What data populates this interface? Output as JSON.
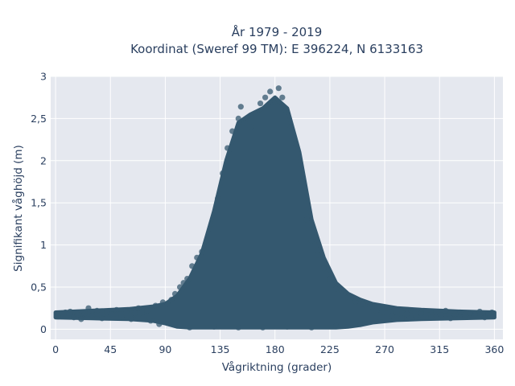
{
  "chart_data": {
    "type": "scatter",
    "title_line1": "År 1979 - 2019",
    "title_line2": "Koordinat (Sweref 99 TM): E 396224, N 6133163",
    "xlabel": "Vågriktning (grader)",
    "ylabel": "Signifikant våghöjd (m)",
    "xlim": [
      -4,
      367
    ],
    "ylim": [
      -0.12,
      3.0
    ],
    "xticks": [
      0,
      45,
      90,
      135,
      180,
      225,
      270,
      315,
      360
    ],
    "xtick_labels": [
      "0",
      "45",
      "90",
      "135",
      "180",
      "225",
      "270",
      "315",
      "360"
    ],
    "yticks": [
      0,
      0.5,
      1,
      1.5,
      2,
      2.5,
      3
    ],
    "ytick_labels": [
      "0",
      "0,5",
      "1",
      "1,5",
      "2",
      "2,5",
      "3"
    ],
    "grid": true,
    "marker_color": "#34586f",
    "background_color": "#e5e8ef",
    "envelope_upper": {
      "x": [
        0,
        30,
        60,
        80,
        90,
        100,
        110,
        120,
        130,
        140,
        150,
        160,
        170,
        180,
        190,
        200,
        210,
        220,
        230,
        240,
        250,
        260,
        280,
        300,
        330,
        360
      ],
      "y": [
        0.2,
        0.22,
        0.24,
        0.27,
        0.3,
        0.4,
        0.6,
        0.9,
        1.4,
        2.0,
        2.45,
        2.55,
        2.62,
        2.75,
        2.62,
        2.1,
        1.3,
        0.85,
        0.55,
        0.42,
        0.35,
        0.3,
        0.25,
        0.23,
        0.21,
        0.2
      ]
    },
    "envelope_lower": {
      "x": [
        0,
        30,
        60,
        80,
        90,
        100,
        110,
        120,
        130,
        140,
        150,
        160,
        170,
        180,
        190,
        200,
        210,
        220,
        230,
        240,
        250,
        260,
        280,
        300,
        330,
        360
      ],
      "y": [
        0.14,
        0.13,
        0.12,
        0.1,
        0.07,
        0.03,
        0.02,
        0.02,
        0.02,
        0.02,
        0.02,
        0.02,
        0.02,
        0.02,
        0.02,
        0.02,
        0.02,
        0.02,
        0.02,
        0.03,
        0.05,
        0.08,
        0.11,
        0.12,
        0.13,
        0.14
      ]
    },
    "points": [
      {
        "x": 2,
        "y": 0.15
      },
      {
        "x": 5,
        "y": 0.18
      },
      {
        "x": 8,
        "y": 0.2
      },
      {
        "x": 12,
        "y": 0.21
      },
      {
        "x": 15,
        "y": 0.14
      },
      {
        "x": 18,
        "y": 0.17
      },
      {
        "x": 21,
        "y": 0.12
      },
      {
        "x": 24,
        "y": 0.19
      },
      {
        "x": 27,
        "y": 0.25
      },
      {
        "x": 30,
        "y": 0.16
      },
      {
        "x": 34,
        "y": 0.22
      },
      {
        "x": 38,
        "y": 0.13
      },
      {
        "x": 42,
        "y": 0.2
      },
      {
        "x": 46,
        "y": 0.18
      },
      {
        "x": 50,
        "y": 0.23
      },
      {
        "x": 54,
        "y": 0.15
      },
      {
        "x": 58,
        "y": 0.21
      },
      {
        "x": 62,
        "y": 0.12
      },
      {
        "x": 65,
        "y": 0.19
      },
      {
        "x": 68,
        "y": 0.25
      },
      {
        "x": 72,
        "y": 0.14
      },
      {
        "x": 75,
        "y": 0.22
      },
      {
        "x": 78,
        "y": 0.1
      },
      {
        "x": 82,
        "y": 0.28
      },
      {
        "x": 85,
        "y": 0.06
      },
      {
        "x": 88,
        "y": 0.32
      },
      {
        "x": 92,
        "y": 0.3
      },
      {
        "x": 95,
        "y": 0.35
      },
      {
        "x": 98,
        "y": 0.42
      },
      {
        "x": 102,
        "y": 0.5
      },
      {
        "x": 105,
        "y": 0.55
      },
      {
        "x": 108,
        "y": 0.6
      },
      {
        "x": 112,
        "y": 0.75
      },
      {
        "x": 116,
        "y": 0.85
      },
      {
        "x": 120,
        "y": 0.92
      },
      {
        "x": 124,
        "y": 1.05
      },
      {
        "x": 128,
        "y": 1.25
      },
      {
        "x": 133,
        "y": 1.55
      },
      {
        "x": 137,
        "y": 1.85
      },
      {
        "x": 141,
        "y": 2.15
      },
      {
        "x": 145,
        "y": 2.35
      },
      {
        "x": 150,
        "y": 2.5
      },
      {
        "x": 152,
        "y": 2.64
      },
      {
        "x": 155,
        "y": 2.45
      },
      {
        "x": 160,
        "y": 2.4
      },
      {
        "x": 164,
        "y": 2.55
      },
      {
        "x": 168,
        "y": 2.68
      },
      {
        "x": 172,
        "y": 2.75
      },
      {
        "x": 176,
        "y": 2.82
      },
      {
        "x": 180,
        "y": 2.7
      },
      {
        "x": 183,
        "y": 2.86
      },
      {
        "x": 186,
        "y": 2.75
      },
      {
        "x": 189,
        "y": 2.6
      },
      {
        "x": 193,
        "y": 2.4
      },
      {
        "x": 197,
        "y": 2.2
      },
      {
        "x": 202,
        "y": 1.75
      },
      {
        "x": 206,
        "y": 1.3
      },
      {
        "x": 210,
        "y": 1.05
      },
      {
        "x": 215,
        "y": 0.88
      },
      {
        "x": 220,
        "y": 0.72
      },
      {
        "x": 225,
        "y": 0.6
      },
      {
        "x": 230,
        "y": 0.48
      },
      {
        "x": 235,
        "y": 0.45
      },
      {
        "x": 240,
        "y": 0.38
      },
      {
        "x": 246,
        "y": 0.33
      },
      {
        "x": 252,
        "y": 0.3
      },
      {
        "x": 258,
        "y": 0.27
      },
      {
        "x": 263,
        "y": 0.22
      },
      {
        "x": 268,
        "y": 0.2
      },
      {
        "x": 272,
        "y": 0.25
      },
      {
        "x": 276,
        "y": 0.16
      },
      {
        "x": 280,
        "y": 0.2
      },
      {
        "x": 284,
        "y": 0.13
      },
      {
        "x": 288,
        "y": 0.18
      },
      {
        "x": 292,
        "y": 0.22
      },
      {
        "x": 296,
        "y": 0.15
      },
      {
        "x": 300,
        "y": 0.19
      },
      {
        "x": 304,
        "y": 0.21
      },
      {
        "x": 308,
        "y": 0.14
      },
      {
        "x": 312,
        "y": 0.2
      },
      {
        "x": 316,
        "y": 0.17
      },
      {
        "x": 320,
        "y": 0.22
      },
      {
        "x": 324,
        "y": 0.13
      },
      {
        "x": 328,
        "y": 0.18
      },
      {
        "x": 332,
        "y": 0.2
      },
      {
        "x": 336,
        "y": 0.15
      },
      {
        "x": 340,
        "y": 0.19
      },
      {
        "x": 344,
        "y": 0.16
      },
      {
        "x": 348,
        "y": 0.21
      },
      {
        "x": 352,
        "y": 0.14
      },
      {
        "x": 355,
        "y": 0.18
      },
      {
        "x": 358,
        "y": 0.2
      },
      {
        "x": 110,
        "y": 0.02
      },
      {
        "x": 130,
        "y": 0.03
      },
      {
        "x": 150,
        "y": 0.02
      },
      {
        "x": 170,
        "y": 0.02
      },
      {
        "x": 190,
        "y": 0.03
      },
      {
        "x": 210,
        "y": 0.02
      },
      {
        "x": 230,
        "y": 0.04
      },
      {
        "x": 250,
        "y": 0.06
      }
    ]
  }
}
